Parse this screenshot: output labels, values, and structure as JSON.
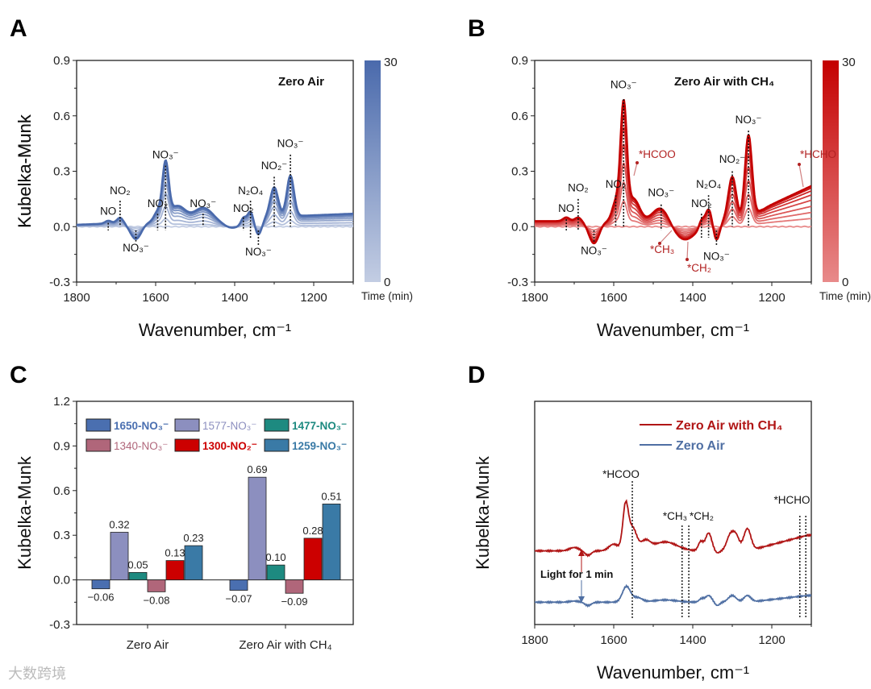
{
  "watermark": "大数跨境",
  "chart_data": [
    {
      "panel": "A",
      "type": "line",
      "title": "Zero Air",
      "xlabel": "Wavenumber, cm⁻¹",
      "ylabel": "Kubelka-Munk",
      "xlim": [
        1800,
        1100
      ],
      "ylim": [
        -0.3,
        0.9
      ],
      "xticks": [
        "1800",
        "1600",
        "1400",
        "1200"
      ],
      "xtick_values": [
        1800,
        1600,
        1400,
        1200
      ],
      "yticks": [
        "0.9",
        "0.6",
        "0.3",
        "0.0",
        "-0.3"
      ],
      "ytick_values": [
        0.9,
        0.6,
        0.3,
        0.0,
        -0.3
      ],
      "colorbar": {
        "max_label": "30",
        "min_label": "0",
        "label": "Time (min)",
        "color_min": "#c3cde3",
        "color_max": "#4a6aac"
      },
      "time_scales": [
        0,
        0.12,
        0.3,
        0.5,
        0.65,
        0.78,
        0.88,
        0.95,
        1
      ],
      "baseline": {
        "start": 0.01,
        "end": 0.07
      },
      "peaks": [
        [
          1720,
          0.015,
          8
        ],
        [
          1690,
          0.03,
          8
        ],
        [
          1650,
          -0.09,
          14
        ],
        [
          1595,
          0.05,
          9
        ],
        [
          1575,
          0.3,
          8
        ],
        [
          1545,
          0.08,
          20
        ],
        [
          1480,
          0.065,
          22
        ],
        [
          1405,
          -0.05,
          25
        ],
        [
          1378,
          0.03,
          6
        ],
        [
          1360,
          0.05,
          7
        ],
        [
          1340,
          -0.09,
          9
        ],
        [
          1300,
          0.16,
          10
        ],
        [
          1259,
          0.22,
          9
        ]
      ],
      "markers": [
        {
          "wn": 1720,
          "label": "NO",
          "top": 0.02,
          "bottom": -0.02,
          "ly": 0.065
        },
        {
          "wn": 1690,
          "label": "NO₂",
          "top": 0.14,
          "bottom": -0.0,
          "ly": 0.175
        },
        {
          "wn": 1650,
          "label": "NO₃⁻",
          "top": -0.02,
          "bottom": -0.08,
          "ly": -0.135
        },
        {
          "wn": 1595,
          "label": "NO₂",
          "top": 0.07,
          "bottom": -0.02,
          "ly": 0.105
        },
        {
          "wn": 1575,
          "label": "NO₃⁻",
          "top": 0.33,
          "bottom": -0.02,
          "ly": 0.37
        },
        {
          "wn": 1480,
          "label": "NO₃⁻",
          "top": 0.07,
          "bottom": -0.0,
          "ly": 0.105
        },
        {
          "wn": 1378,
          "label": "NO₂",
          "top": 0.05,
          "bottom": -0.02,
          "ly": 0.08
        },
        {
          "wn": 1360,
          "label": "N₂O₄",
          "top": 0.14,
          "bottom": -0.06,
          "ly": 0.175
        },
        {
          "wn": 1340,
          "label": "NO₃⁻",
          "top": -0.02,
          "bottom": -0.1,
          "ly": -0.155
        },
        {
          "wn": 1300,
          "label": "NO₂⁻",
          "top": 0.27,
          "bottom": -0.0,
          "ly": 0.31
        },
        {
          "wn": 1259,
          "label": "NO₃⁻",
          "top": 0.39,
          "bottom": -0.0,
          "ly": 0.43
        }
      ]
    },
    {
      "panel": "B",
      "type": "line",
      "title": "Zero Air with CH₄",
      "xlabel": "Wavenumber, cm⁻¹",
      "ylabel": "Kubelka-Munk",
      "xlim": [
        1800,
        1100
      ],
      "ylim": [
        -0.3,
        0.9
      ],
      "xticks": [
        "1800",
        "1600",
        "1400",
        "1200"
      ],
      "xtick_values": [
        1800,
        1600,
        1400,
        1200
      ],
      "yticks": [
        "0.9",
        "0.6",
        "0.3",
        "0.0",
        "-0.3"
      ],
      "ytick_values": [
        0.9,
        0.6,
        0.3,
        0.0,
        -0.3
      ],
      "colorbar": {
        "max_label": "30",
        "min_label": "0",
        "label": "Time (min)",
        "color_min": "#e88a8a",
        "color_max": "#c40000"
      },
      "time_scales": [
        0,
        0.2,
        0.35,
        0.5,
        0.65,
        0.78,
        0.88,
        0.95,
        1
      ],
      "baseline": {
        "start": 0.03,
        "end": 0.22
      },
      "peaks": [
        [
          1720,
          0.02,
          8
        ],
        [
          1690,
          0.02,
          8
        ],
        [
          1650,
          -0.12,
          13
        ],
        [
          1595,
          0.1,
          9
        ],
        [
          1575,
          0.62,
          8
        ],
        [
          1550,
          0.12,
          15
        ],
        [
          1480,
          0.08,
          20
        ],
        [
          1420,
          -0.1,
          30
        ],
        [
          1378,
          0.04,
          6
        ],
        [
          1360,
          0.08,
          8
        ],
        [
          1340,
          -0.1,
          8
        ],
        [
          1300,
          0.24,
          10
        ],
        [
          1259,
          0.46,
          9
        ]
      ],
      "markers": [
        {
          "wn": 1720,
          "label": "NO",
          "top": 0.04,
          "bottom": -0.02,
          "ly": 0.08
        },
        {
          "wn": 1690,
          "label": "NO₂",
          "top": 0.15,
          "bottom": -0.02,
          "ly": 0.19
        },
        {
          "wn": 1650,
          "label": "NO₃⁻",
          "top": -0.02,
          "bottom": -0.09,
          "ly": -0.15
        },
        {
          "wn": 1595,
          "label": "NO₂",
          "top": 0.17,
          "bottom": 0.0,
          "ly": 0.21
        },
        {
          "wn": 1575,
          "label": "NO₃⁻",
          "top": 0.69,
          "bottom": 0.0,
          "ly": 0.75
        },
        {
          "wn": 1480,
          "label": "NO₃⁻",
          "top": 0.12,
          "bottom": -0.02,
          "ly": 0.165
        },
        {
          "wn": 1378,
          "label": "NO₂",
          "top": 0.07,
          "bottom": -0.06,
          "ly": 0.105
        },
        {
          "wn": 1360,
          "label": "N₂O₄",
          "top": 0.17,
          "bottom": -0.06,
          "ly": 0.21
        },
        {
          "wn": 1340,
          "label": "NO₃⁻",
          "top": -0.02,
          "bottom": -0.1,
          "ly": -0.18
        },
        {
          "wn": 1300,
          "label": "NO₂⁻",
          "top": 0.3,
          "bottom": 0.0,
          "ly": 0.345
        },
        {
          "wn": 1259,
          "label": "NO₃⁻",
          "top": 0.52,
          "bottom": 0.0,
          "ly": 0.56
        }
      ],
      "annotations": [
        {
          "label": "*HCOO"
        },
        {
          "label": "*CH₃"
        },
        {
          "label": "*CH₂"
        },
        {
          "label": "*HCHO"
        }
      ],
      "annotation_color": "#b22222"
    },
    {
      "panel": "C",
      "type": "bar",
      "ylabel": "Kubelka-Munk",
      "ylim": [
        -0.3,
        1.2
      ],
      "yticks": [
        "1.2",
        "0.9",
        "0.6",
        "0.3",
        "0.0",
        "-0.3"
      ],
      "ytick_values": [
        1.2,
        0.9,
        0.6,
        0.3,
        0.0,
        -0.3
      ],
      "categories": [
        "Zero Air",
        "Zero Air with CH₄"
      ],
      "series": [
        {
          "name": "1650-NO₃⁻",
          "color": "#4a6fb0",
          "values": [
            -0.06,
            -0.07
          ],
          "labels": [
            "−0.06",
            "−0.07"
          ]
        },
        {
          "name": "1577-NO₃⁻",
          "color": "#8c8fbf",
          "values": [
            0.32,
            0.69
          ],
          "labels": [
            "0.32",
            "0.69"
          ]
        },
        {
          "name": "1477-NO₃⁻",
          "color": "#1d8a80",
          "values": [
            0.05,
            0.1
          ],
          "labels": [
            "0.05",
            "0.10"
          ]
        },
        {
          "name": "1340-NO₃⁻",
          "color": "#b0667a",
          "values": [
            -0.08,
            -0.09
          ],
          "labels": [
            "−0.08",
            "−0.09"
          ]
        },
        {
          "name": "1300-NO₂⁻",
          "color": "#cc0000",
          "values": [
            0.13,
            0.28
          ],
          "labels": [
            "0.13",
            "0.28"
          ]
        },
        {
          "name": "1259-NO₃⁻",
          "color": "#3a7aa6",
          "values": [
            0.23,
            0.51
          ],
          "labels": [
            "0.23",
            "0.51"
          ]
        }
      ],
      "legend": "top"
    },
    {
      "panel": "D",
      "type": "line",
      "xlabel": "Wavenumber, cm⁻¹",
      "ylabel": "Kubelka-Munk",
      "xlim": [
        1800,
        1100
      ],
      "ylim": [
        0,
        1
      ],
      "xticks": [
        "1800",
        "1600",
        "1400",
        "1200"
      ],
      "xtick_values": [
        1800,
        1600,
        1400,
        1200
      ],
      "series": [
        {
          "name": "Zero Air with CH₄",
          "color": "#b01515",
          "offset": 0.33,
          "rise": 0.07,
          "peaks": [
            [
              1700,
              0.015,
              12
            ],
            [
              1665,
              -0.02,
              8
            ],
            [
              1600,
              0.03,
              12
            ],
            [
              1570,
              0.2,
              7
            ],
            [
              1552,
              0.1,
              10
            ],
            [
              1520,
              0.04,
              12
            ],
            [
              1470,
              0.04,
              30
            ],
            [
              1380,
              0.04,
              6
            ],
            [
              1360,
              0.08,
              8
            ],
            [
              1338,
              -0.01,
              6
            ],
            [
              1305,
              0.07,
              9
            ],
            [
              1290,
              0.06,
              8
            ],
            [
              1262,
              0.1,
              9
            ]
          ]
        },
        {
          "name": "Zero Air",
          "color": "#4f6fa3",
          "offset": 0.1,
          "rise": 0.03,
          "peaks": [
            [
              1700,
              0.005,
              12
            ],
            [
              1665,
              -0.015,
              8
            ],
            [
              1568,
              0.07,
              10
            ],
            [
              1540,
              0.02,
              12
            ],
            [
              1470,
              0.01,
              30
            ],
            [
              1378,
              0.015,
              6
            ],
            [
              1360,
              0.03,
              8
            ],
            [
              1338,
              -0.015,
              6
            ],
            [
              1300,
              0.03,
              10
            ],
            [
              1262,
              0.03,
              9
            ]
          ]
        }
      ],
      "markers": [
        {
          "wn": 1553,
          "label": "*HCOO"
        },
        {
          "wn": 1427,
          "label": "*CH₃"
        },
        {
          "wn": 1410,
          "label": "*CH₂"
        },
        {
          "wn": 1129,
          "label": "*HCHO"
        },
        {
          "wn": 1114,
          "label": ""
        }
      ],
      "light_label": "Light for 1 min"
    }
  ],
  "panel_letters": [
    "A",
    "B",
    "C",
    "D"
  ]
}
